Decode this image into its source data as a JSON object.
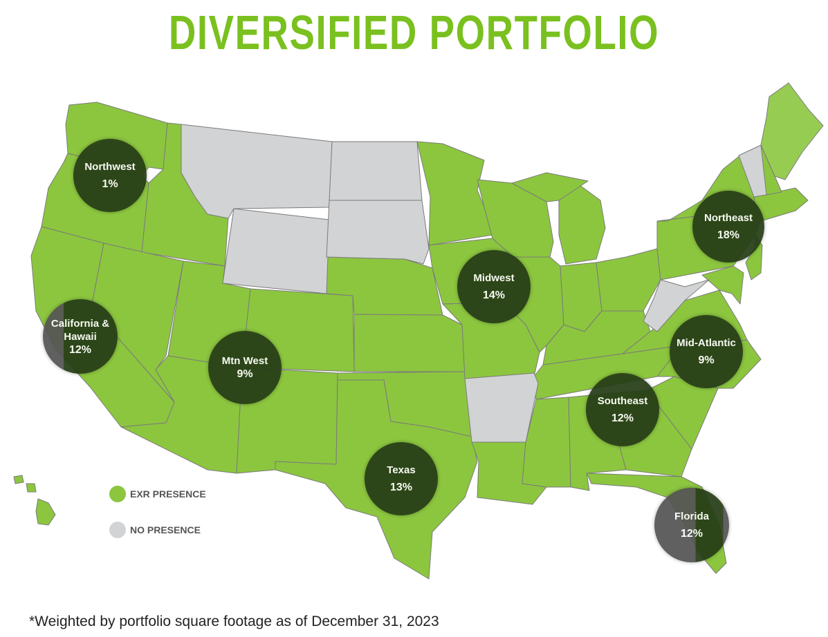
{
  "title": "DIVERSIFIED PORTFOLIO",
  "colors": {
    "presence": "#8cc63f",
    "no_presence": "#d1d3d4",
    "title": "#7ac01f",
    "region_circle": "#263d17"
  },
  "regions": [
    {
      "name": "Northwest",
      "pct": "1%"
    },
    {
      "name": "California & Hawaii",
      "pct": "12%"
    },
    {
      "name": "Mtn West",
      "pct": "9%"
    },
    {
      "name": "Texas",
      "pct": "13%"
    },
    {
      "name": "Midwest",
      "pct": "14%"
    },
    {
      "name": "Northeast",
      "pct": "18%"
    },
    {
      "name": "Mid-Atlantic",
      "pct": "9%"
    },
    {
      "name": "Southeast",
      "pct": "12%"
    },
    {
      "name": "Florida",
      "pct": "12%"
    }
  ],
  "legend": {
    "presence_label": "EXR PRESENCE",
    "no_presence_label": "NO PRESENCE"
  },
  "footnote": "*Weighted by portfolio square footage as of December 31, 2023"
}
